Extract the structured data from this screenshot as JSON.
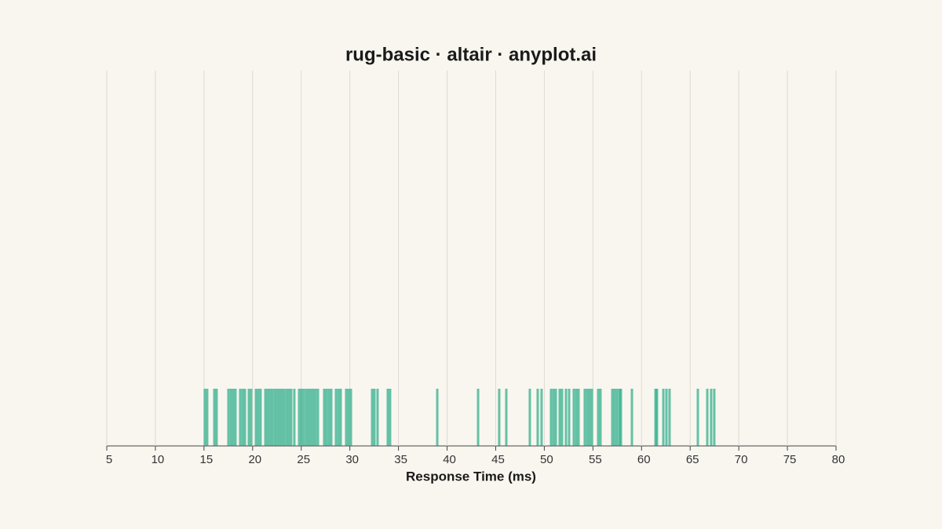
{
  "chart_data": {
    "type": "rug",
    "title": "rug-basic · altair · anyplot.ai",
    "x_label": "Response Time (ms)",
    "color": "#009E73",
    "x": [
      15.09,
      15.33,
      16.06,
      16.3,
      17.51,
      17.76,
      18.0,
      18.24,
      18.72,
      18.97,
      19.21,
      19.61,
      19.85,
      20.34,
      20.58,
      20.82,
      21.31,
      21.55,
      21.79,
      22.03,
      22.28,
      22.52,
      22.76,
      23.0,
      23.24,
      23.49,
      23.73,
      23.97,
      24.29,
      24.78,
      25.02,
      25.26,
      25.51,
      25.75,
      25.99,
      26.23,
      26.47,
      26.72,
      27.36,
      27.6,
      27.85,
      28.09,
      28.57,
      28.82,
      29.06,
      29.62,
      29.86,
      30.11,
      32.29,
      32.53,
      32.85,
      33.9,
      34.14,
      38.99,
      43.19,
      45.36,
      46.09,
      48.51,
      49.32,
      49.72,
      50.69,
      50.94,
      51.18,
      51.58,
      51.82,
      52.23,
      52.55,
      53.03,
      53.28,
      53.52,
      54.16,
      54.41,
      54.65,
      54.89,
      55.54,
      55.78,
      56.99,
      57.23,
      57.47,
      57.72,
      57.88,
      59.01,
      61.43,
      61.59,
      62.24,
      62.56,
      62.88,
      65.79,
      66.76,
      67.16,
      67.48
    ],
    "xlim": [
      5,
      80
    ],
    "xticks": [
      5,
      10,
      15,
      20,
      25,
      30,
      35,
      40,
      45,
      50,
      55,
      60,
      65,
      70,
      75,
      80
    ],
    "grid": true
  }
}
